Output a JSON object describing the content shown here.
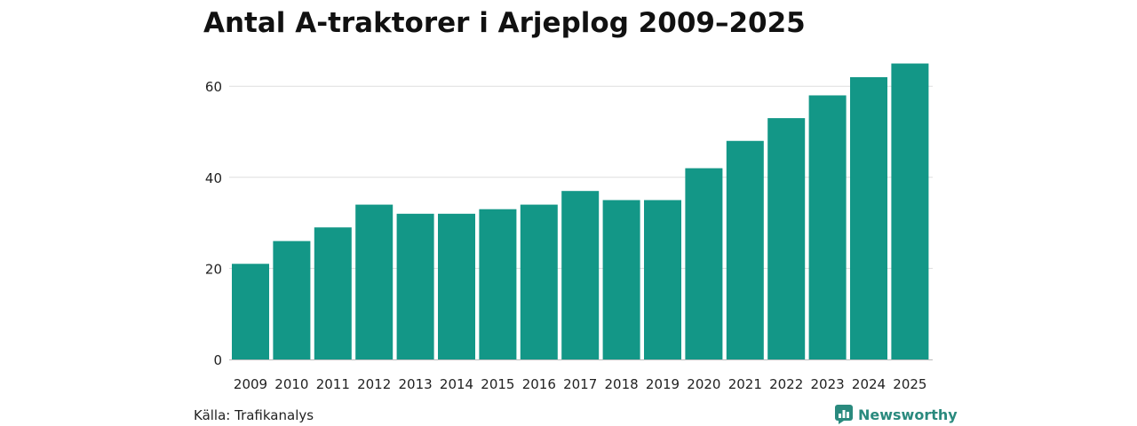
{
  "colors": {
    "bar": "#139787",
    "grid": "#dddddd",
    "axis": "#bbbbbb",
    "text": "#222222",
    "brand": "#2a8a7e"
  },
  "footer": {
    "source": "Källa: Trafikanalys",
    "brand_name": "Newsworthy",
    "brand_icon": "newsworthy-logo-icon"
  },
  "chart_data": {
    "type": "bar",
    "title": "Antal A-traktorer i Arjeplog 2009–2025",
    "xlabel": "",
    "ylabel": "",
    "categories": [
      "2009",
      "2010",
      "2011",
      "2012",
      "2013",
      "2014",
      "2015",
      "2016",
      "2017",
      "2018",
      "2019",
      "2020",
      "2021",
      "2022",
      "2023",
      "2024",
      "2025"
    ],
    "values": [
      21,
      26,
      29,
      34,
      32,
      32,
      33,
      34,
      37,
      35,
      35,
      42,
      48,
      53,
      58,
      62,
      65
    ],
    "ylim": [
      0,
      65
    ],
    "yticks": [
      0,
      20,
      40,
      60
    ],
    "grid": true,
    "legend": "none"
  }
}
